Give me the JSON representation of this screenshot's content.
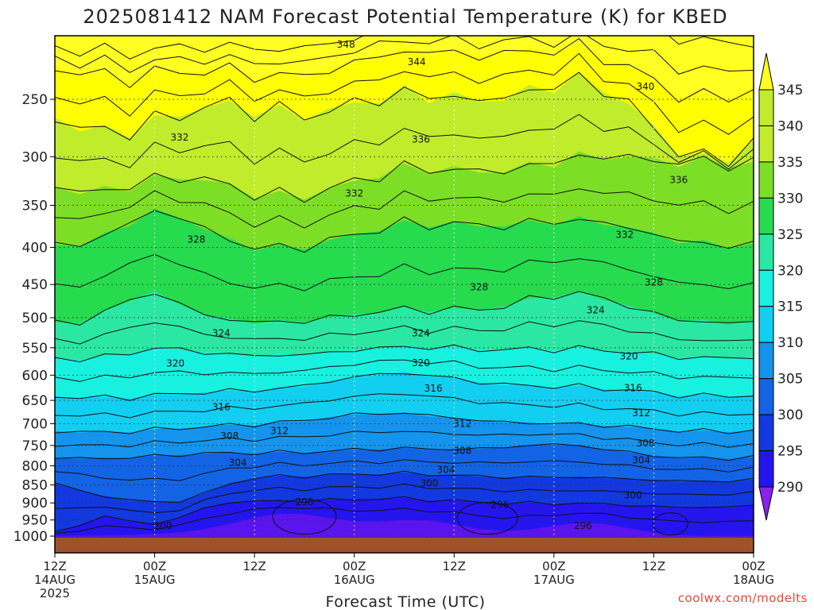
{
  "chart_data": {
    "type": "heatmap",
    "title": "2025081412 NAM Forecast Potential Temperature (K) for KBED",
    "xlabel": "Forecast Time (UTC)",
    "ylabel": "",
    "x_ticks": [
      {
        "hour": 0,
        "label": "12Z",
        "date": "14AUG",
        "year": "2025"
      },
      {
        "hour": 12,
        "label": "00Z",
        "date": "15AUG",
        "year": ""
      },
      {
        "hour": 24,
        "label": "12Z",
        "date": "",
        "year": ""
      },
      {
        "hour": 36,
        "label": "00Z",
        "date": "16AUG",
        "year": ""
      },
      {
        "hour": 48,
        "label": "12Z",
        "date": "",
        "year": ""
      },
      {
        "hour": 60,
        "label": "00Z",
        "date": "17AUG",
        "year": ""
      },
      {
        "hour": 72,
        "label": "12Z",
        "date": "",
        "year": ""
      },
      {
        "hour": 84,
        "label": "00Z",
        "date": "18AUG",
        "year": ""
      }
    ],
    "x_range_hours": [
      0,
      84
    ],
    "y_ticks": [
      250,
      300,
      350,
      400,
      450,
      500,
      550,
      600,
      650,
      700,
      750,
      800,
      850,
      900,
      950,
      1000
    ],
    "y_range_hPa": [
      200,
      1010
    ],
    "y_scale": "log",
    "y_inverted": true,
    "grid": "dotted",
    "ground_color": "#a0522d",
    "colorbar": {
      "ticks": [
        345,
        340,
        335,
        330,
        325,
        320,
        315,
        310,
        305,
        300,
        295,
        290
      ],
      "bands": [
        {
          "level": 345,
          "color": "#ffff00"
        },
        {
          "level": 340,
          "color": "#c0ec2b"
        },
        {
          "level": 335,
          "color": "#7cdf25"
        },
        {
          "level": 330,
          "color": "#26dc4e"
        },
        {
          "level": 325,
          "color": "#2ae8a4"
        },
        {
          "level": 320,
          "color": "#18f0e0"
        },
        {
          "level": 315,
          "color": "#12cef0"
        },
        {
          "level": 310,
          "color": "#1494ec"
        },
        {
          "level": 305,
          "color": "#1264e4"
        },
        {
          "level": 300,
          "color": "#1238e0"
        },
        {
          "level": 295,
          "color": "#2414ee"
        },
        {
          "level": 290,
          "color": "#5a14ee"
        }
      ],
      "over_color": "#ffff22",
      "under_color": "#8a22ee"
    },
    "contour_labels": [
      {
        "value": "348",
        "hour": 35,
        "hPa": 210
      },
      {
        "value": "344",
        "hour": 43.5,
        "hPa": 222
      },
      {
        "value": "340",
        "hour": 71,
        "hPa": 240
      },
      {
        "value": "336",
        "hour": 44,
        "hPa": 284
      },
      {
        "value": "336",
        "hour": 75,
        "hPa": 323
      },
      {
        "value": "332",
        "hour": 15,
        "hPa": 282
      },
      {
        "value": "332",
        "hour": 36,
        "hPa": 337
      },
      {
        "value": "332",
        "hour": 68.5,
        "hPa": 384
      },
      {
        "value": "328",
        "hour": 17,
        "hPa": 390
      },
      {
        "value": "328",
        "hour": 51,
        "hPa": 454
      },
      {
        "value": "328",
        "hour": 72,
        "hPa": 447
      },
      {
        "value": "324",
        "hour": 20,
        "hPa": 525
      },
      {
        "value": "324",
        "hour": 44,
        "hPa": 525
      },
      {
        "value": "324",
        "hour": 65,
        "hPa": 488
      },
      {
        "value": "320",
        "hour": 14.5,
        "hPa": 578
      },
      {
        "value": "320",
        "hour": 44,
        "hPa": 577
      },
      {
        "value": "320",
        "hour": 69,
        "hPa": 565
      },
      {
        "value": "316",
        "hour": 20,
        "hPa": 664
      },
      {
        "value": "316",
        "hour": 45.5,
        "hPa": 626
      },
      {
        "value": "316",
        "hour": 69.5,
        "hPa": 625
      },
      {
        "value": "312",
        "hour": 27,
        "hPa": 716
      },
      {
        "value": "312",
        "hour": 49,
        "hPa": 700
      },
      {
        "value": "312",
        "hour": 70.5,
        "hPa": 677
      },
      {
        "value": "308",
        "hour": 21,
        "hPa": 728
      },
      {
        "value": "308",
        "hour": 49,
        "hPa": 763
      },
      {
        "value": "308",
        "hour": 71,
        "hPa": 745
      },
      {
        "value": "304",
        "hour": 22,
        "hPa": 792
      },
      {
        "value": "304",
        "hour": 47,
        "hPa": 810
      },
      {
        "value": "304",
        "hour": 70.5,
        "hPa": 786
      },
      {
        "value": "300",
        "hour": 45,
        "hPa": 846
      },
      {
        "value": "300",
        "hour": 69.5,
        "hPa": 878
      },
      {
        "value": "300",
        "hour": 13,
        "hPa": 968
      },
      {
        "value": "296",
        "hour": 30,
        "hPa": 897
      },
      {
        "value": "296",
        "hour": 53.5,
        "hPa": 905
      },
      {
        "value": "296",
        "hour": 63.5,
        "hPa": 968
      }
    ]
  },
  "credit": "coolwx.com/modelts"
}
